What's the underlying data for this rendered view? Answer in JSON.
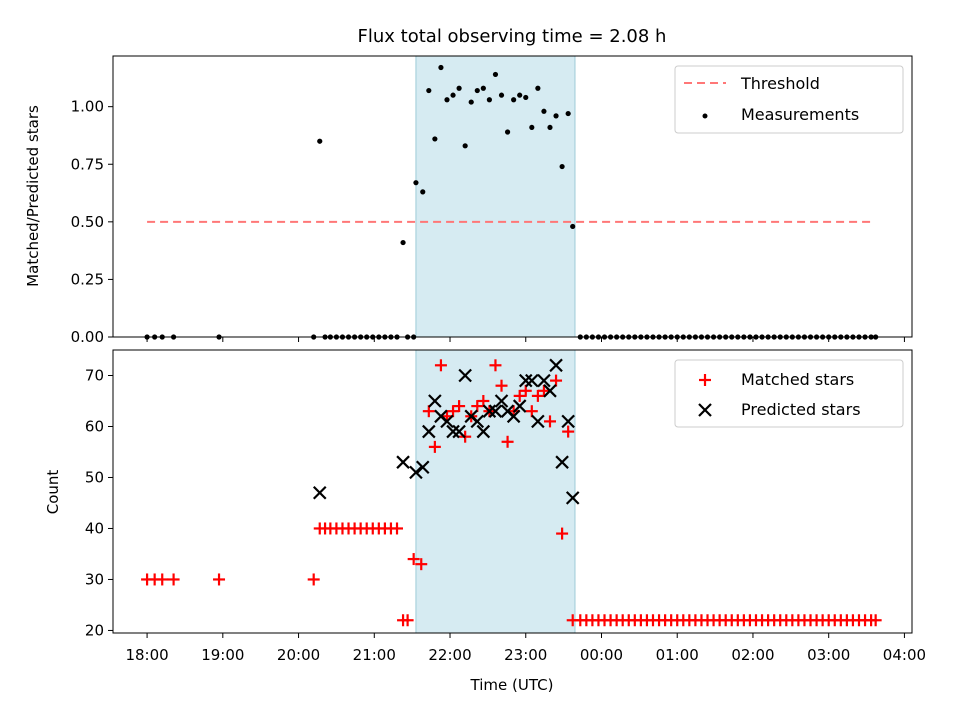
{
  "title": "Flux total observing time = 2.08 h",
  "colors": {
    "highlight": "#add8e6",
    "threshold": "#ff7777",
    "matched": "#ff0000",
    "predicted": "#000000",
    "measurements": "#000000"
  },
  "chart_data": [
    {
      "type": "scatter",
      "ylabel": "Matched/Predicted stars",
      "ylim": [
        0,
        1.22
      ],
      "yticks": [
        0,
        0.25,
        0.5,
        0.75,
        1.0
      ],
      "ytick_labels": [
        "0.00",
        "0.25",
        "0.50",
        "0.75",
        "1.00"
      ],
      "xlim_hours": [
        17.55,
        28.1
      ],
      "highlight_span_hours": [
        21.55,
        23.65
      ],
      "threshold": {
        "name": "Threshold",
        "value": 0.5,
        "x_hours": [
          18.0,
          27.6
        ]
      },
      "legend": [
        "Threshold",
        "Measurements"
      ],
      "series": [
        {
          "name": "Measurements",
          "x": [
            18.0,
            18.1,
            18.2,
            18.35,
            18.95,
            20.2,
            20.28,
            20.35,
            20.42,
            20.5,
            20.58,
            20.66,
            20.74,
            20.82,
            20.9,
            20.98,
            21.06,
            21.14,
            21.22,
            21.3,
            21.38,
            21.44,
            21.52,
            21.55,
            21.64,
            21.72,
            21.8,
            21.88,
            21.96,
            22.04,
            22.12,
            22.2,
            22.28,
            22.36,
            22.44,
            22.52,
            22.6,
            22.68,
            22.76,
            22.84,
            22.92,
            23.0,
            23.08,
            23.16,
            23.24,
            23.32,
            23.4,
            23.48,
            23.56,
            23.62,
            23.72,
            23.8,
            23.88,
            23.96,
            24.04,
            24.12,
            24.2,
            24.28,
            24.36,
            24.44,
            24.52,
            24.6,
            24.68,
            24.76,
            24.84,
            24.92,
            25.0,
            25.08,
            25.16,
            25.24,
            25.32,
            25.4,
            25.48,
            25.56,
            25.64,
            25.72,
            25.8,
            25.88,
            25.96,
            26.04,
            26.12,
            26.2,
            26.28,
            26.36,
            26.44,
            26.52,
            26.6,
            26.68,
            26.76,
            26.84,
            26.92,
            27.0,
            27.08,
            27.16,
            27.24,
            27.32,
            27.4,
            27.48,
            27.56,
            27.62
          ],
          "y": [
            0,
            0,
            0,
            0,
            0,
            0,
            0.85,
            0,
            0,
            0,
            0,
            0,
            0,
            0,
            0,
            0,
            0,
            0,
            0,
            0,
            0.41,
            0,
            0,
            0.67,
            0.63,
            1.07,
            0.86,
            1.17,
            1.03,
            1.05,
            1.08,
            0.83,
            1.02,
            1.07,
            1.08,
            1.03,
            1.14,
            1.05,
            0.89,
            1.03,
            1.05,
            1.04,
            0.91,
            1.08,
            0.98,
            0.91,
            0.96,
            0.74,
            0.97,
            0.48,
            0,
            0,
            0,
            0,
            0,
            0,
            0,
            0,
            0,
            0,
            0,
            0,
            0,
            0,
            0,
            0,
            0,
            0,
            0,
            0,
            0,
            0,
            0,
            0,
            0,
            0,
            0,
            0,
            0,
            0,
            0,
            0,
            0,
            0,
            0,
            0,
            0,
            0,
            0,
            0,
            0,
            0,
            0,
            0,
            0,
            0,
            0,
            0,
            0,
            0
          ]
        }
      ]
    },
    {
      "type": "scatter",
      "xlabel": "Time (UTC)",
      "ylabel": "Count",
      "ylim": [
        19.5,
        75
      ],
      "yticks": [
        20,
        30,
        40,
        50,
        60,
        70
      ],
      "ytick_labels": [
        "20",
        "30",
        "40",
        "50",
        "60",
        "70"
      ],
      "xlim_hours": [
        17.55,
        28.1
      ],
      "xticks_hours": [
        18,
        19,
        20,
        21,
        22,
        23,
        24,
        25,
        26,
        27,
        28
      ],
      "xtick_labels": [
        "18:00",
        "19:00",
        "20:00",
        "21:00",
        "22:00",
        "23:00",
        "00:00",
        "01:00",
        "02:00",
        "03:00",
        "04:00"
      ],
      "highlight_span_hours": [
        21.55,
        23.65
      ],
      "legend": [
        "Matched stars",
        "Predicted stars"
      ],
      "series": [
        {
          "name": "Matched stars",
          "marker": "+",
          "x": [
            18.0,
            18.1,
            18.2,
            18.35,
            18.95,
            20.2,
            20.28,
            20.35,
            20.42,
            20.5,
            20.58,
            20.66,
            20.74,
            20.82,
            20.9,
            20.98,
            21.06,
            21.14,
            21.22,
            21.3,
            21.38,
            21.44,
            21.52,
            21.62,
            21.72,
            21.8,
            21.88,
            21.96,
            22.04,
            22.12,
            22.2,
            22.28,
            22.36,
            22.44,
            22.52,
            22.6,
            22.68,
            22.76,
            22.84,
            22.92,
            23.0,
            23.08,
            23.16,
            23.24,
            23.32,
            23.4,
            23.48,
            23.56,
            23.62,
            23.72,
            23.8,
            23.88,
            23.96,
            24.04,
            24.12,
            24.2,
            24.28,
            24.36,
            24.44,
            24.52,
            24.6,
            24.68,
            24.76,
            24.84,
            24.92,
            25.0,
            25.08,
            25.16,
            25.24,
            25.32,
            25.4,
            25.48,
            25.56,
            25.64,
            25.72,
            25.8,
            25.88,
            25.96,
            26.04,
            26.12,
            26.2,
            26.28,
            26.36,
            26.44,
            26.52,
            26.6,
            26.68,
            26.76,
            26.84,
            26.92,
            27.0,
            27.08,
            27.16,
            27.24,
            27.32,
            27.4,
            27.48,
            27.56,
            27.62
          ],
          "y": [
            30,
            30,
            30,
            30,
            30,
            30,
            40,
            40,
            40,
            40,
            40,
            40,
            40,
            40,
            40,
            40,
            40,
            40,
            40,
            40,
            22,
            22,
            34,
            33,
            63,
            56,
            72,
            62,
            63,
            64,
            58,
            62,
            64,
            65,
            63,
            72,
            68,
            57,
            63,
            66,
            67,
            63,
            66,
            67,
            61,
            69,
            39,
            59,
            22,
            22,
            22,
            22,
            22,
            22,
            22,
            22,
            22,
            22,
            22,
            22,
            22,
            22,
            22,
            22,
            22,
            22,
            22,
            22,
            22,
            22,
            22,
            22,
            22,
            22,
            22,
            22,
            22,
            22,
            22,
            22,
            22,
            22,
            22,
            22,
            22,
            22,
            22,
            22,
            22,
            22,
            22,
            22,
            22,
            22,
            22,
            22,
            22,
            22,
            22
          ]
        },
        {
          "name": "Predicted stars",
          "marker": "x",
          "x": [
            20.28,
            21.38,
            21.55,
            21.64,
            21.72,
            21.8,
            21.88,
            21.96,
            22.04,
            22.12,
            22.2,
            22.28,
            22.36,
            22.44,
            22.52,
            22.6,
            22.68,
            22.76,
            22.84,
            22.92,
            23.0,
            23.08,
            23.16,
            23.24,
            23.32,
            23.4,
            23.48,
            23.56,
            23.62
          ],
          "y": [
            47,
            53,
            51,
            52,
            59,
            65,
            62,
            61,
            59,
            59,
            70,
            62,
            61,
            59,
            63,
            63,
            65,
            63,
            62,
            64,
            69,
            69,
            61,
            69,
            67,
            72,
            53,
            61,
            46
          ]
        }
      ]
    }
  ]
}
